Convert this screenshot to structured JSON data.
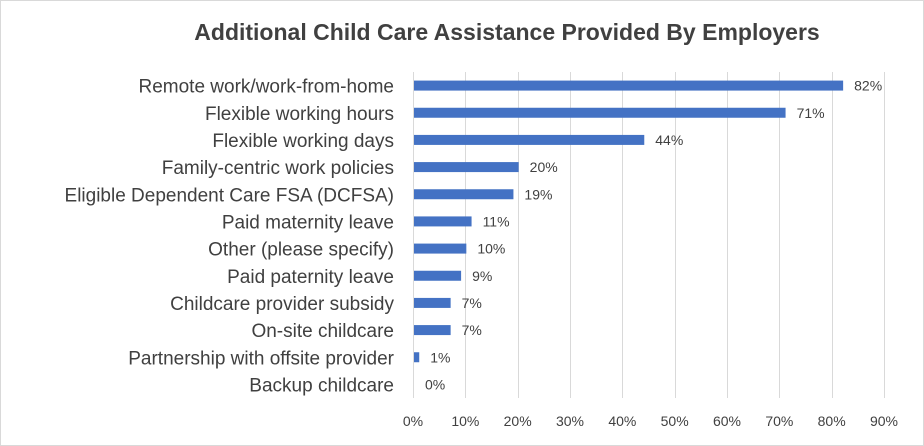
{
  "chart_data": {
    "type": "bar",
    "orientation": "horizontal",
    "title": "Additional Child Care Assistance Provided By Employers",
    "categories": [
      "Remote work/work-from-home",
      "Flexible working hours",
      "Flexible working days",
      "Family-centric work policies",
      "Eligible Dependent Care FSA (DCFSA)",
      "Paid maternity leave",
      "Other (please specify)",
      "Paid paternity leave",
      "Childcare provider subsidy",
      "On-site childcare",
      "Partnership with offsite provider",
      "Backup childcare"
    ],
    "values": [
      82,
      71,
      44,
      20,
      19,
      11,
      10,
      9,
      7,
      7,
      1,
      0
    ],
    "value_labels": [
      "82%",
      "71%",
      "44%",
      "20%",
      "19%",
      "11%",
      "10%",
      "9%",
      "7%",
      "7%",
      "1%",
      "0%"
    ],
    "xlim": [
      0,
      90
    ],
    "xticks": [
      "0%",
      "10%",
      "20%",
      "30%",
      "40%",
      "50%",
      "60%",
      "70%",
      "80%",
      "90%"
    ],
    "grid": true,
    "legend": "none",
    "bar_color": "#4472c4"
  }
}
